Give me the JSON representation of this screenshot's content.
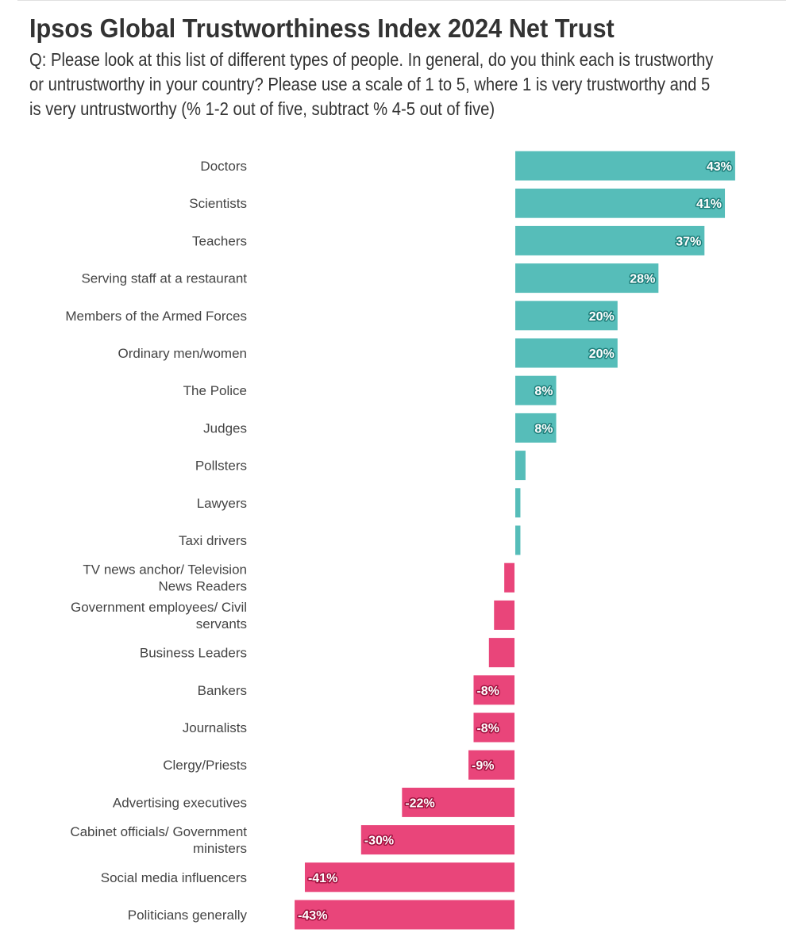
{
  "chart_data": {
    "type": "bar",
    "orientation": "horizontal",
    "title": "Ipsos Global Trustworthiness Index 2024 Net Trust",
    "subtitle": "Q: Please look at this list of different types of people. In general, do you think each is trustworthy or untrustworthy in your country? Please use a scale of 1 to 5, where 1 is very trustworthy and 5 is very untrustworthy (% 1-2 out of five, subtract % 4-5 out of five)",
    "categories": [
      [
        "Doctors"
      ],
      [
        "Scientists"
      ],
      [
        "Teachers"
      ],
      [
        "Serving staff at a restaurant"
      ],
      [
        "Members of the Armed Forces"
      ],
      [
        "Ordinary men/women"
      ],
      [
        "The Police"
      ],
      [
        "Judges"
      ],
      [
        "Pollsters"
      ],
      [
        "Lawyers"
      ],
      [
        "Taxi drivers"
      ],
      [
        "TV news anchor/ Television",
        "News Readers"
      ],
      [
        "Government employees/ Civil",
        "servants"
      ],
      [
        "Business Leaders"
      ],
      [
        "Bankers"
      ],
      [
        "Journalists"
      ],
      [
        "Clergy/Priests"
      ],
      [
        "Advertising executives"
      ],
      [
        "Cabinet officials/ Government",
        "ministers"
      ],
      [
        "Social media influencers"
      ],
      [
        "Politicians generally"
      ]
    ],
    "values": [
      43,
      41,
      37,
      28,
      20,
      20,
      8,
      8,
      2,
      1,
      1,
      -2,
      -4,
      -5,
      -8,
      -8,
      -9,
      -22,
      -30,
      -41,
      -43
    ],
    "data_labels": [
      "43%",
      "41%",
      "37%",
      "28%",
      "20%",
      "20%",
      "8%",
      "8%",
      "",
      "",
      "",
      "",
      "",
      "",
      "-8%",
      "-8%",
      "-9%",
      "-22%",
      "-30%",
      "-41%",
      "-43%"
    ],
    "xlim": [
      -43,
      43
    ],
    "colors": {
      "positive": "#56bdb9",
      "negative": "#e9457a",
      "positive_stroke": "#1f7f7b",
      "negative_stroke": "#a0123f"
    }
  }
}
